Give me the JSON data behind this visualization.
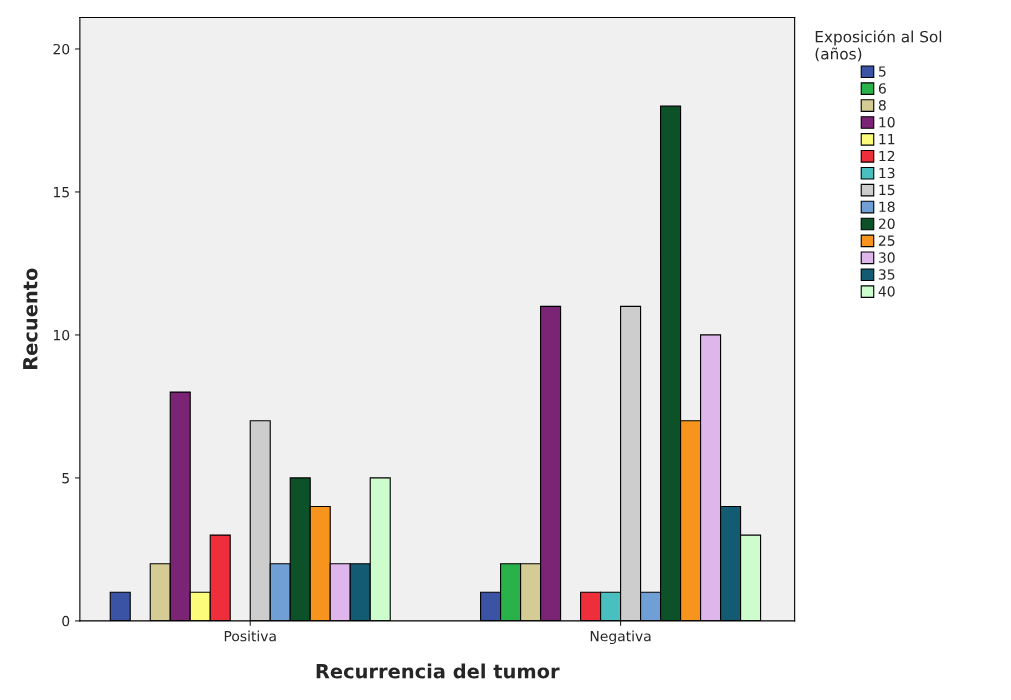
{
  "chart_data": {
    "type": "bar",
    "xlabel": "Recurrencia del tumor",
    "ylabel": "Recuento",
    "legend_title": "Exposición al Sol\n(años)",
    "categories": [
      "Positiva",
      "Negativa"
    ],
    "series": [
      {
        "name": "5",
        "color": "#3a53a4",
        "values": [
          1,
          1
        ]
      },
      {
        "name": "6",
        "color": "#2ab24a",
        "values": [
          null,
          2
        ]
      },
      {
        "name": "8",
        "color": "#d4cc94",
        "values": [
          2,
          2
        ]
      },
      {
        "name": "10",
        "color": "#7b2375",
        "values": [
          8,
          11
        ]
      },
      {
        "name": "11",
        "color": "#fdfb7a",
        "values": [
          1,
          null
        ]
      },
      {
        "name": "12",
        "color": "#ee2e3b",
        "values": [
          3,
          1
        ]
      },
      {
        "name": "13",
        "color": "#4abfc0",
        "values": [
          null,
          1
        ]
      },
      {
        "name": "15",
        "color": "#cdcdcd",
        "values": [
          7,
          11
        ]
      },
      {
        "name": "18",
        "color": "#6f9fd5",
        "values": [
          2,
          1
        ]
      },
      {
        "name": "20",
        "color": "#0d5128",
        "values": [
          5,
          18
        ]
      },
      {
        "name": "25",
        "color": "#f7941d",
        "values": [
          4,
          7
        ]
      },
      {
        "name": "30",
        "color": "#deb6ec",
        "values": [
          2,
          10
        ]
      },
      {
        "name": "35",
        "color": "#135b73",
        "values": [
          2,
          4
        ]
      },
      {
        "name": "40",
        "color": "#cdfccd",
        "values": [
          5,
          3
        ]
      }
    ],
    "ylim": [
      0,
      21.1
    ],
    "yticks": [
      0,
      5,
      10,
      15,
      20
    ],
    "grid": false,
    "legend": "right"
  }
}
